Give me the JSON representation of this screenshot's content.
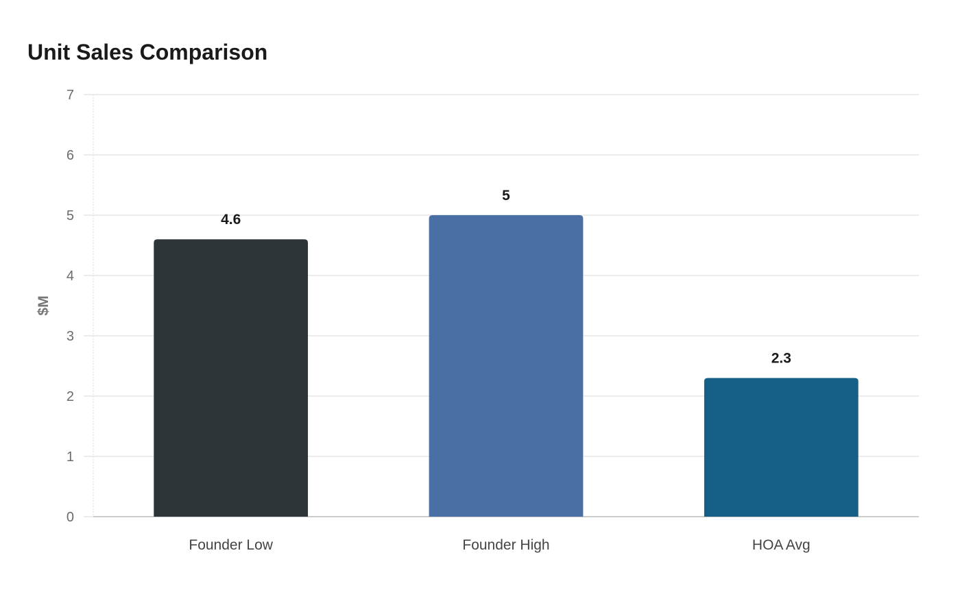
{
  "chart_data": {
    "type": "bar",
    "title": "Unit Sales Comparison",
    "xlabel": "",
    "ylabel": "$M",
    "categories": [
      "Founder Low",
      "Founder High",
      "HOA Avg"
    ],
    "values": [
      4.6,
      5,
      2.3
    ],
    "value_labels": [
      "4.6",
      "5",
      "2.3"
    ],
    "colors": [
      "#2e3538",
      "#4a6fa5",
      "#166088"
    ],
    "ylim": [
      0,
      7
    ],
    "yticks": [
      0,
      1,
      2,
      3,
      4,
      5,
      6,
      7
    ],
    "grid": true,
    "legend": "none"
  }
}
